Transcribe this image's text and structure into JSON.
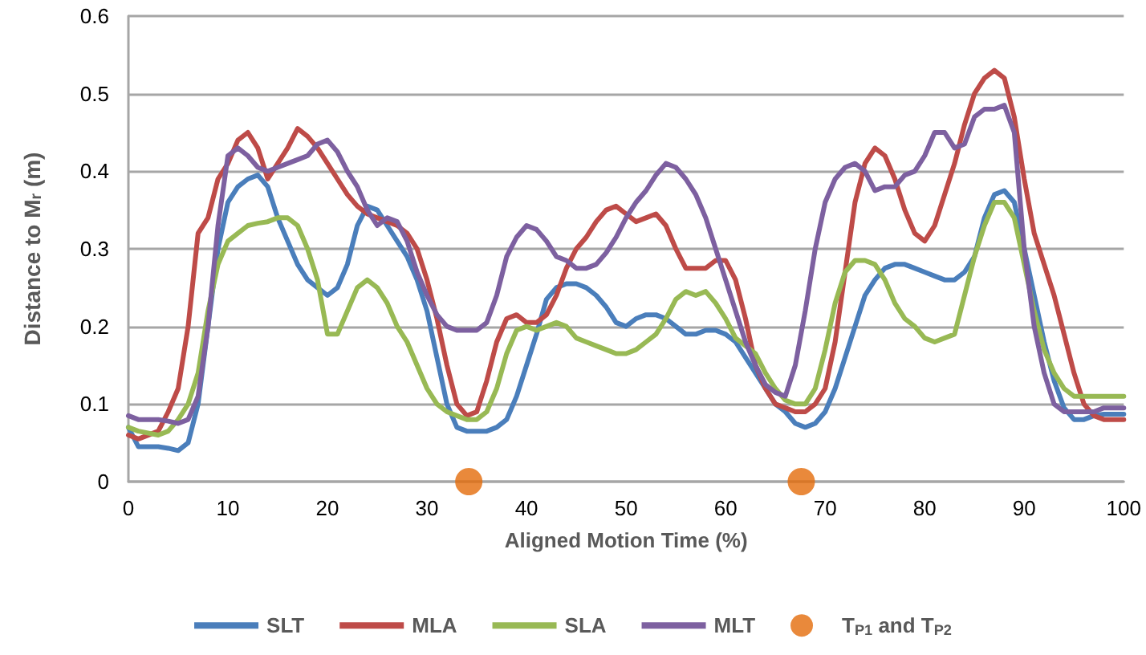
{
  "chart_data": {
    "type": "line",
    "xlabel": "Aligned Motion Time (%)",
    "ylabel": "Distance to M$_{r}$ (m)",
    "x": [
      0,
      1,
      3,
      4,
      5,
      6,
      7,
      8,
      9,
      10,
      11,
      12,
      13,
      14,
      15,
      16,
      17,
      18,
      19,
      20,
      21,
      22,
      23,
      24,
      25,
      26,
      27,
      28,
      29,
      30,
      31,
      32,
      33,
      34,
      35,
      36,
      37,
      38,
      39,
      40,
      41,
      42,
      43,
      44,
      45,
      46,
      47,
      48,
      49,
      50,
      51,
      52,
      53,
      54,
      55,
      56,
      57,
      58,
      59,
      60,
      61,
      62,
      63,
      64,
      65,
      66,
      67,
      68,
      69,
      70,
      71,
      72,
      73,
      74,
      75,
      76,
      77,
      78,
      79,
      80,
      81,
      82,
      83,
      84,
      85,
      86,
      87,
      88,
      89,
      90,
      91,
      92,
      93,
      94,
      95,
      96,
      97,
      98,
      99,
      100
    ],
    "series": [
      {
        "name": "SLT",
        "color": "#4a7ebb",
        "values": [
          0.07,
          0.045,
          0.045,
          0.043,
          0.04,
          0.05,
          0.1,
          0.2,
          0.3,
          0.36,
          0.38,
          0.39,
          0.395,
          0.38,
          0.34,
          0.31,
          0.28,
          0.26,
          0.25,
          0.24,
          0.25,
          0.28,
          0.33,
          0.355,
          0.35,
          0.33,
          0.31,
          0.29,
          0.26,
          0.22,
          0.16,
          0.1,
          0.07,
          0.065,
          0.065,
          0.065,
          0.07,
          0.08,
          0.11,
          0.15,
          0.19,
          0.235,
          0.25,
          0.255,
          0.255,
          0.25,
          0.24,
          0.225,
          0.205,
          0.2,
          0.21,
          0.215,
          0.215,
          0.21,
          0.2,
          0.19,
          0.19,
          0.195,
          0.195,
          0.19,
          0.18,
          0.16,
          0.14,
          0.12,
          0.1,
          0.09,
          0.075,
          0.07,
          0.075,
          0.09,
          0.12,
          0.16,
          0.2,
          0.24,
          0.26,
          0.275,
          0.28,
          0.28,
          0.275,
          0.27,
          0.265,
          0.26,
          0.26,
          0.27,
          0.29,
          0.34,
          0.37,
          0.375,
          0.36,
          0.3,
          0.24,
          0.18,
          0.13,
          0.095,
          0.08,
          0.08,
          0.085,
          0.087,
          0.087,
          0.087
        ]
      },
      {
        "name": "MLA",
        "color": "#be4b48",
        "values": [
          0.06,
          0.055,
          0.065,
          0.09,
          0.12,
          0.2,
          0.32,
          0.34,
          0.39,
          0.41,
          0.44,
          0.45,
          0.43,
          0.39,
          0.41,
          0.43,
          0.455,
          0.445,
          0.43,
          0.41,
          0.39,
          0.37,
          0.355,
          0.345,
          0.34,
          0.335,
          0.33,
          0.32,
          0.3,
          0.26,
          0.21,
          0.15,
          0.1,
          0.085,
          0.09,
          0.13,
          0.18,
          0.21,
          0.215,
          0.205,
          0.205,
          0.215,
          0.24,
          0.275,
          0.3,
          0.315,
          0.335,
          0.35,
          0.355,
          0.345,
          0.335,
          0.34,
          0.345,
          0.33,
          0.3,
          0.275,
          0.275,
          0.275,
          0.285,
          0.285,
          0.26,
          0.21,
          0.15,
          0.12,
          0.1,
          0.095,
          0.09,
          0.09,
          0.1,
          0.12,
          0.18,
          0.27,
          0.36,
          0.41,
          0.43,
          0.42,
          0.39,
          0.35,
          0.32,
          0.31,
          0.33,
          0.37,
          0.41,
          0.46,
          0.5,
          0.52,
          0.53,
          0.52,
          0.47,
          0.39,
          0.32,
          0.28,
          0.24,
          0.19,
          0.14,
          0.1,
          0.085,
          0.08,
          0.08,
          0.08
        ]
      },
      {
        "name": "SLA",
        "color": "#98b954",
        "values": [
          0.07,
          0.065,
          0.06,
          0.065,
          0.08,
          0.1,
          0.14,
          0.22,
          0.28,
          0.31,
          0.32,
          0.33,
          0.333,
          0.335,
          0.34,
          0.34,
          0.33,
          0.3,
          0.26,
          0.19,
          0.19,
          0.22,
          0.25,
          0.26,
          0.25,
          0.23,
          0.2,
          0.18,
          0.15,
          0.12,
          0.1,
          0.09,
          0.085,
          0.08,
          0.08,
          0.09,
          0.12,
          0.165,
          0.195,
          0.2,
          0.195,
          0.2,
          0.205,
          0.2,
          0.185,
          0.18,
          0.175,
          0.17,
          0.165,
          0.165,
          0.17,
          0.18,
          0.19,
          0.21,
          0.235,
          0.245,
          0.24,
          0.245,
          0.23,
          0.21,
          0.185,
          0.175,
          0.165,
          0.14,
          0.12,
          0.105,
          0.1,
          0.1,
          0.12,
          0.17,
          0.23,
          0.27,
          0.285,
          0.285,
          0.28,
          0.26,
          0.23,
          0.21,
          0.2,
          0.185,
          0.18,
          0.185,
          0.19,
          0.24,
          0.29,
          0.33,
          0.36,
          0.36,
          0.34,
          0.28,
          0.22,
          0.17,
          0.14,
          0.12,
          0.11,
          0.11,
          0.11,
          0.11,
          0.11,
          0.11
        ]
      },
      {
        "name": "MLT",
        "color": "#7d60a0",
        "values": [
          0.085,
          0.08,
          0.08,
          0.078,
          0.075,
          0.08,
          0.11,
          0.2,
          0.33,
          0.42,
          0.43,
          0.42,
          0.405,
          0.4,
          0.405,
          0.41,
          0.415,
          0.42,
          0.435,
          0.44,
          0.425,
          0.4,
          0.38,
          0.35,
          0.33,
          0.34,
          0.335,
          0.31,
          0.27,
          0.24,
          0.215,
          0.2,
          0.195,
          0.195,
          0.195,
          0.205,
          0.24,
          0.29,
          0.315,
          0.33,
          0.325,
          0.31,
          0.29,
          0.285,
          0.275,
          0.275,
          0.28,
          0.295,
          0.315,
          0.34,
          0.36,
          0.375,
          0.395,
          0.41,
          0.405,
          0.39,
          0.37,
          0.34,
          0.3,
          0.26,
          0.22,
          0.18,
          0.15,
          0.125,
          0.115,
          0.11,
          0.15,
          0.22,
          0.3,
          0.36,
          0.39,
          0.405,
          0.41,
          0.4,
          0.375,
          0.38,
          0.38,
          0.395,
          0.4,
          0.42,
          0.45,
          0.45,
          0.43,
          0.435,
          0.47,
          0.48,
          0.48,
          0.485,
          0.45,
          0.3,
          0.2,
          0.14,
          0.1,
          0.09,
          0.09,
          0.09,
          0.09,
          0.095,
          0.095,
          0.095
        ]
      },
      {
        "name": "T$_{P1}$ and T$_{P2}$",
        "type": "scatter",
        "marker": "circle",
        "color": "#e46c0a",
        "x": [
          34.2,
          67.6
        ],
        "values": [
          0,
          0
        ]
      }
    ],
    "xlim": [
      0,
      100
    ],
    "xticks": [
      0,
      10,
      20,
      30,
      40,
      50,
      60,
      70,
      80,
      90,
      100
    ],
    "ylim": [
      0,
      0.6
    ],
    "yticks": [
      0,
      0.1,
      0.2,
      0.3,
      0.4,
      0.5,
      0.6
    ],
    "grid": "y",
    "legend": "bottom",
    "marker": "none",
    "line_style": "solid"
  }
}
